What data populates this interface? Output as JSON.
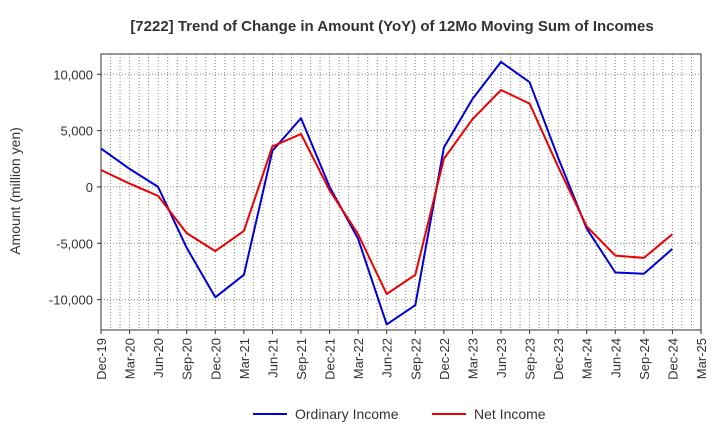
{
  "chart_data": {
    "type": "line",
    "title": "[7222]  Trend of Change in Amount (YoY) of 12Mo Moving Sum of Incomes",
    "xlabel": "",
    "ylabel": "Amount (million yen)",
    "categories": [
      "Dec-19",
      "Mar-20",
      "Jun-20",
      "Sep-20",
      "Dec-20",
      "Mar-21",
      "Jun-21",
      "Sep-21",
      "Dec-21",
      "Mar-22",
      "Jun-22",
      "Sep-22",
      "Dec-22",
      "Mar-23",
      "Jun-23",
      "Sep-23",
      "Dec-23",
      "Mar-24",
      "Jun-24",
      "Sep-24",
      "Dec-24",
      "Mar-25"
    ],
    "ylim": [
      -12700,
      11800
    ],
    "yticks": [
      10000,
      5000,
      0,
      -5000,
      -10000
    ],
    "ytick_labels": [
      "10,000",
      "5,000",
      "0",
      "-5,000",
      "-10,000"
    ],
    "grid": true,
    "legend_position": "bottom",
    "series": [
      {
        "name": "Ordinary Income",
        "color": "#0000dd",
        "values": [
          3400,
          1600,
          0,
          -5400,
          -9800,
          -7800,
          3200,
          6100,
          0,
          -4600,
          -12200,
          -10500,
          3500,
          7800,
          11100,
          9300,
          2600,
          -3700,
          -7600,
          -7700,
          -5500,
          null
        ]
      },
      {
        "name": "Net Income",
        "color": "#ee0000",
        "values": [
          1500,
          300,
          -800,
          -4100,
          -5700,
          -3900,
          3600,
          4700,
          -300,
          -4200,
          -9500,
          -7800,
          2500,
          6000,
          8600,
          7400,
          1800,
          -3500,
          -6100,
          -6300,
          -4200,
          null
        ]
      }
    ]
  }
}
